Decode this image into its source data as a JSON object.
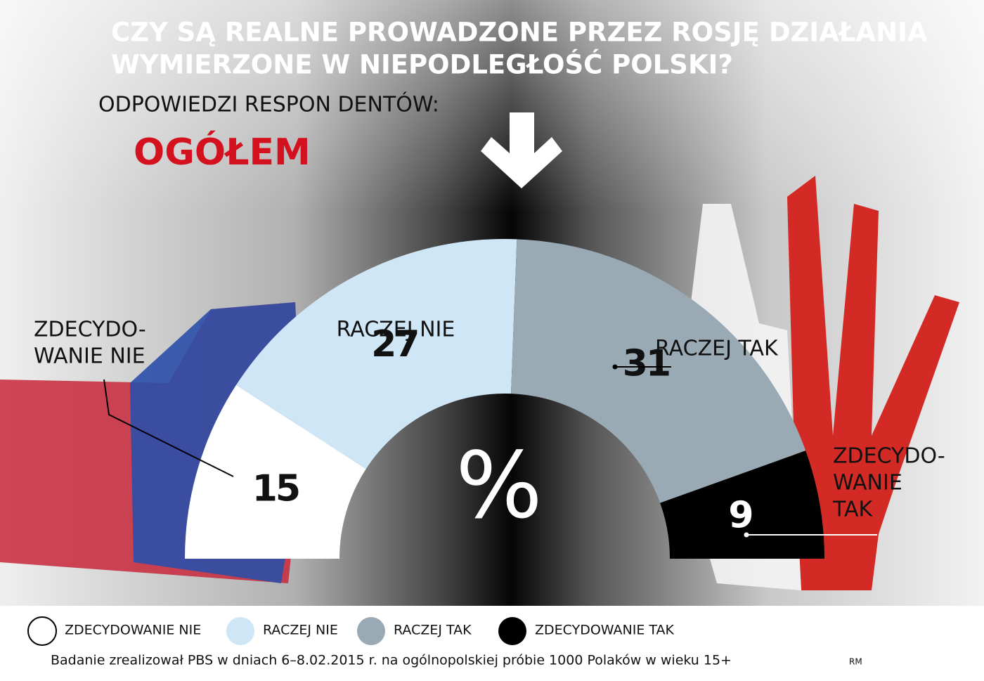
{
  "chart_data": {
    "type": "half-donut",
    "title": [
      "CZY SĄ REALNE PROWADZONE PRZEZ ROSJĘ DZIAŁANIA",
      "WYMIERZONE W NIEPODLEGŁOŚĆ POLSKI?"
    ],
    "subtitle": "ODPOWIEDZI RESPON DENTÓW:",
    "group_label": "OGÓŁEM",
    "center_label": "%",
    "categories": [
      "ZDECYDOWANIE NIE",
      "RACZEJ NIE",
      "RACZEJ TAK",
      "ZDECYDOWANIE TAK"
    ],
    "slice_labels": [
      [
        "ZDECYDO-",
        "WANIE NIE"
      ],
      [
        "RACZEJ NIE"
      ],
      [
        "RACZEJ TAK"
      ],
      [
        "ZDECYDO-",
        "WANIE",
        "TAK"
      ]
    ],
    "values": [
      15,
      27,
      31,
      9
    ],
    "colors": [
      "#ffffff",
      "#cfe6f6",
      "#9aaab4",
      "#000000"
    ],
    "source": "Badanie zrealizował PBS w dniach 6–8.02.2015 r. na ogólnopolskiej próbie 1000 Polaków w wieku 15+",
    "credit": "RM"
  }
}
